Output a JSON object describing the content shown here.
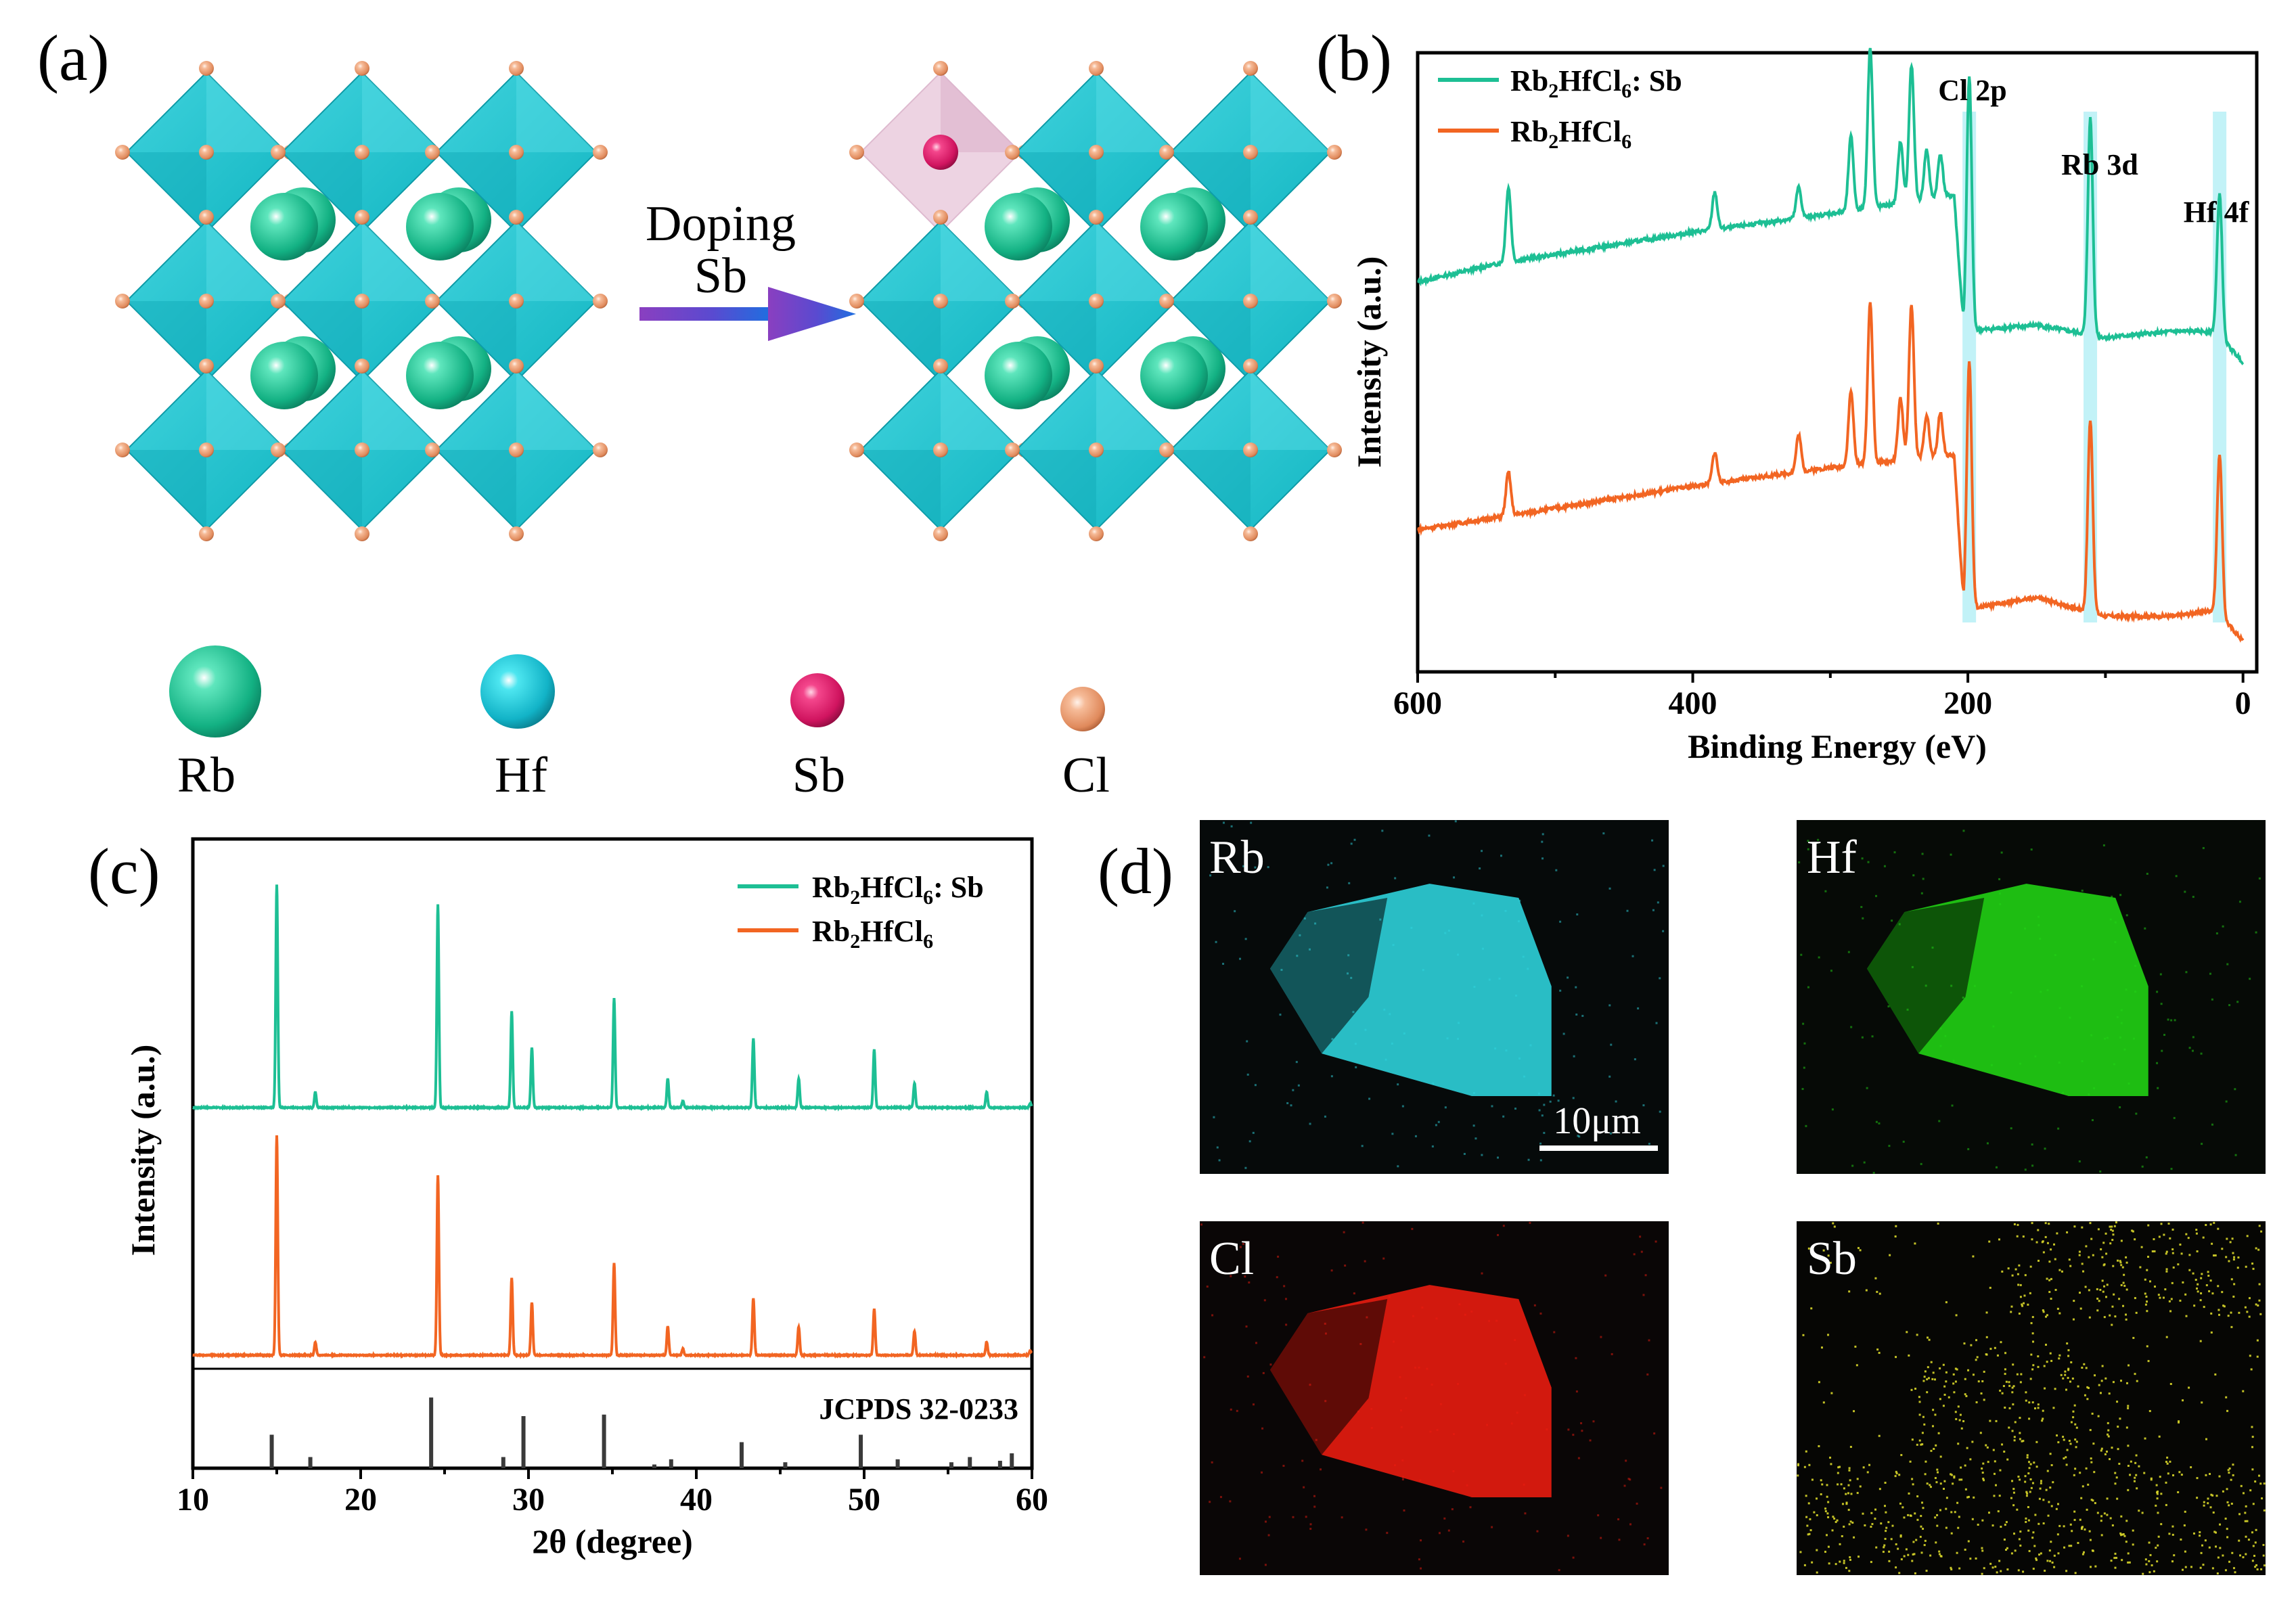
{
  "panels": {
    "a": {
      "label": "(a)",
      "arrow_text": [
        "Doping",
        "Sb"
      ],
      "legend": [
        {
          "name": "Rb",
          "color": "#1fc99a"
        },
        {
          "name": "Hf",
          "color": "#18c8dc"
        },
        {
          "name": "Sb",
          "color": "#e0186e"
        },
        {
          "name": "Cl",
          "color": "#f0a77e"
        }
      ]
    },
    "b": {
      "label": "(b)"
    },
    "c": {
      "label": "(c)"
    },
    "d": {
      "label": "(d)",
      "maps": [
        {
          "element": "Rb",
          "color": "#2fd6df"
        },
        {
          "element": "Hf",
          "color": "#22d615"
        },
        {
          "element": "Cl",
          "color": "#ee1c10"
        },
        {
          "element": "Sb",
          "color": "#d8d62a"
        }
      ],
      "scale_bar": "10μm"
    }
  },
  "chart_data": [
    {
      "panel": "b",
      "type": "line",
      "title": "",
      "xlabel": "Binding Energy (eV)",
      "ylabel": "Intensity (a.u.)",
      "xlim": [
        600,
        0
      ],
      "xticks": [
        600,
        400,
        200,
        0
      ],
      "yticks": false,
      "legend": [
        {
          "name": "Rb2HfCl6: Sb",
          "color": "#1dbf94"
        },
        {
          "name": "Rb2HfCl6",
          "color": "#f26522"
        }
      ],
      "annotations": [
        {
          "text": "Cl 2p",
          "x": 199
        },
        {
          "text": "Rb 3d",
          "x": 111
        },
        {
          "text": "Hf 4f",
          "x": 17
        }
      ],
      "series": [
        {
          "name": "Rb2HfCl6: Sb",
          "baseline": [
            [
              600,
              0.63
            ],
            [
              540,
              0.66
            ],
            [
              400,
              0.71
            ],
            [
              300,
              0.74
            ],
            [
              210,
              0.77
            ],
            [
              203,
              0.55
            ],
            [
              150,
              0.56
            ],
            [
              100,
              0.54
            ],
            [
              50,
              0.55
            ],
            [
              20,
              0.55
            ],
            [
              0,
              0.5
            ]
          ],
          "peaks": [
            [
              534,
              0.12
            ],
            [
              384,
              0.06
            ],
            [
              323,
              0.05
            ],
            [
              285,
              0.12
            ],
            [
              271,
              0.26
            ],
            [
              249,
              0.1
            ],
            [
              241,
              0.22
            ],
            [
              230,
              0.08
            ],
            [
              220,
              0.07
            ],
            [
              199,
              0.41
            ],
            [
              111,
              0.35
            ],
            [
              17,
              0.23
            ]
          ]
        },
        {
          "name": "Rb2HfCl6",
          "baseline": [
            [
              600,
              0.23
            ],
            [
              540,
              0.25
            ],
            [
              400,
              0.3
            ],
            [
              300,
              0.33
            ],
            [
              210,
              0.35
            ],
            [
              203,
              0.1
            ],
            [
              150,
              0.12
            ],
            [
              100,
              0.09
            ],
            [
              50,
              0.09
            ],
            [
              20,
              0.1
            ],
            [
              0,
              0.05
            ]
          ],
          "peaks": [
            [
              534,
              0.07
            ],
            [
              384,
              0.05
            ],
            [
              323,
              0.06
            ],
            [
              285,
              0.12
            ],
            [
              271,
              0.26
            ],
            [
              249,
              0.1
            ],
            [
              241,
              0.25
            ],
            [
              230,
              0.07
            ],
            [
              220,
              0.07
            ],
            [
              199,
              0.4
            ],
            [
              111,
              0.31
            ],
            [
              17,
              0.26
            ]
          ]
        }
      ]
    },
    {
      "panel": "c",
      "type": "line",
      "title": "",
      "xlabel": "2θ (degree)",
      "ylabel": "Intensity (a.u.)",
      "xlim": [
        10,
        60
      ],
      "xticks": [
        10,
        20,
        30,
        40,
        50,
        60
      ],
      "legend": [
        {
          "name": "Rb2HfCl6: Sb",
          "color": "#1dbf94"
        },
        {
          "name": "Rb2HfCl6",
          "color": "#f26522"
        }
      ],
      "reference_label": "JCPDS 32-0233",
      "series": [
        {
          "name": "Rb2HfCl6: Sb",
          "peaks": [
            [
              15.0,
              1.0
            ],
            [
              17.3,
              0.07
            ],
            [
              24.6,
              0.91
            ],
            [
              29.0,
              0.43
            ],
            [
              30.2,
              0.27
            ],
            [
              35.1,
              0.49
            ],
            [
              38.3,
              0.13
            ],
            [
              39.2,
              0.03
            ],
            [
              43.4,
              0.31
            ],
            [
              46.1,
              0.13
            ],
            [
              50.6,
              0.26
            ],
            [
              53.0,
              0.11
            ],
            [
              57.3,
              0.07
            ],
            [
              59.9,
              0.02
            ]
          ]
        },
        {
          "name": "Rb2HfCl6",
          "peaks": [
            [
              15.0,
              1.0
            ],
            [
              17.3,
              0.06
            ],
            [
              24.6,
              0.82
            ],
            [
              29.0,
              0.35
            ],
            [
              30.2,
              0.24
            ],
            [
              35.1,
              0.42
            ],
            [
              38.3,
              0.13
            ],
            [
              39.2,
              0.03
            ],
            [
              43.4,
              0.26
            ],
            [
              46.1,
              0.13
            ],
            [
              50.6,
              0.21
            ],
            [
              53.0,
              0.11
            ],
            [
              57.3,
              0.06
            ],
            [
              59.9,
              0.02
            ]
          ]
        },
        {
          "name": "JCPDS 32-0233",
          "type": "stick",
          "peaks": [
            [
              14.7,
              0.45
            ],
            [
              17.0,
              0.15
            ],
            [
              24.2,
              0.95
            ],
            [
              28.5,
              0.15
            ],
            [
              29.7,
              0.7
            ],
            [
              34.5,
              0.72
            ],
            [
              37.5,
              0.05
            ],
            [
              38.5,
              0.12
            ],
            [
              42.7,
              0.35
            ],
            [
              45.3,
              0.08
            ],
            [
              49.8,
              0.45
            ],
            [
              52.0,
              0.12
            ],
            [
              55.2,
              0.08
            ],
            [
              56.3,
              0.15
            ],
            [
              58.1,
              0.1
            ],
            [
              58.8,
              0.2
            ]
          ]
        }
      ]
    }
  ]
}
